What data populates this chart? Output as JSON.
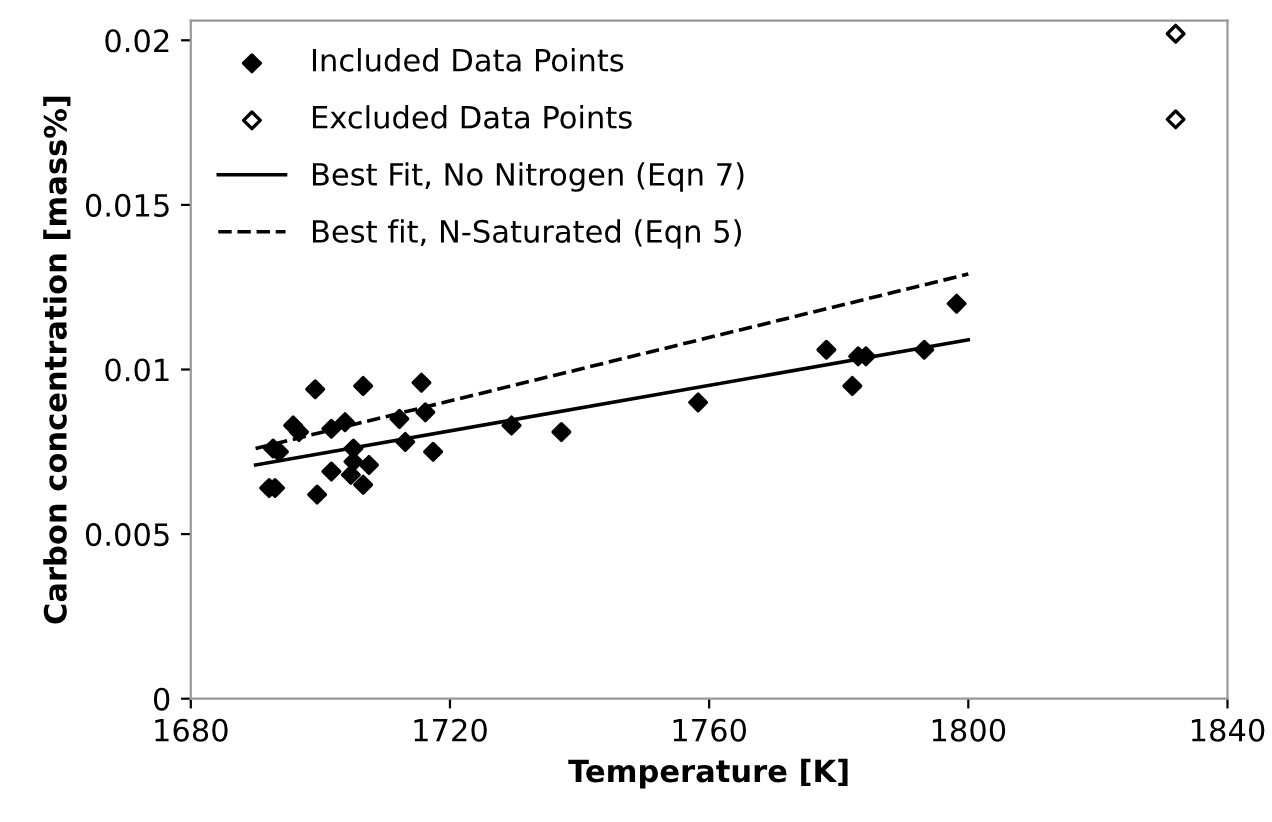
{
  "chart_data": {
    "type": "scatter",
    "xlabel": "Temperature [K]",
    "ylabel": "Carbon concentration [mass%]",
    "xlim": [
      1680,
      1840
    ],
    "xticks": [
      1680,
      1720,
      1760,
      1800,
      1840
    ],
    "ylim": [
      0,
      0.0206
    ],
    "yticks": [
      0,
      0.005,
      0.01,
      0.015,
      0.02
    ],
    "grid": false,
    "legend": "top left",
    "series": [
      {
        "name": "Included Data Points",
        "marker": "diamond",
        "color": "#000000",
        "x": [
          1692.1,
          1693.0,
          1692.7,
          1693.6,
          1695.8,
          1696.7,
          1699.2,
          1699.5,
          1701.7,
          1701.7,
          1703.8,
          1705.1,
          1705.1,
          1704.7,
          1706.6,
          1707.5,
          1706.6,
          1712.2,
          1713.1,
          1715.6,
          1716.2,
          1717.4,
          1729.5,
          1737.2,
          1758.3,
          1778.1,
          1782.1,
          1783.0,
          1784.2,
          1793.2,
          1798.2
        ],
        "values": [
          0.0064,
          0.0064,
          0.0076,
          0.0075,
          0.0083,
          0.0081,
          0.0094,
          0.0062,
          0.0069,
          0.0082,
          0.0084,
          0.0076,
          0.0072,
          0.0068,
          0.0065,
          0.0071,
          0.0095,
          0.0085,
          0.0078,
          0.0096,
          0.0087,
          0.0075,
          0.0083,
          0.0081,
          0.009,
          0.0106,
          0.0095,
          0.0104,
          0.0104,
          0.0106,
          0.012
        ]
      },
      {
        "name": "Excluded Data Points",
        "marker": "diamond_open",
        "color": "#000000",
        "x": [
          1832,
          1832
        ],
        "values": [
          0.0202,
          0.0176
        ]
      },
      {
        "name": "Best Fit, No Nitrogen (Eqn 7)",
        "type": "line",
        "line_style": "solid",
        "color": "#000000",
        "x": [
          1690,
          1800
        ],
        "values": [
          0.0071,
          0.0109
        ]
      },
      {
        "name": "Best fit, N-Saturated (Eqn 5)",
        "type": "line",
        "line_style": "dashed",
        "color": "#000000",
        "x": [
          1690,
          1800
        ],
        "values": [
          0.0076,
          0.0129
        ]
      }
    ]
  }
}
